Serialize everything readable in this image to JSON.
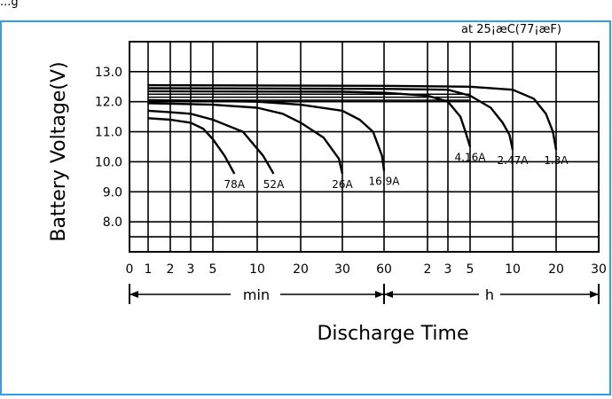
{
  "header": {
    "visible_fragment": "...g"
  },
  "note": "at 25¡æC(77¡æF)",
  "chart_data": {
    "type": "line",
    "title": "",
    "ylabel": "Battery Voltage(V)",
    "xlabel": "Discharge Time",
    "ylim": [
      7.0,
      14.0
    ],
    "y_ticks": [
      "13.0",
      "12.0",
      "11.0",
      "10.0",
      "9.0",
      "8.0"
    ],
    "y_tick_values": [
      13.0,
      12.0,
      11.0,
      10.0,
      9.0,
      8.0
    ],
    "x_scale": "log",
    "x_segments": [
      {
        "name": "min",
        "ticks": [
          "0",
          "1",
          "2",
          "3",
          "5",
          "10",
          "20",
          "30",
          "60"
        ]
      },
      {
        "name": "h",
        "ticks": [
          "2",
          "3",
          "5",
          "10",
          "20",
          "30"
        ]
      }
    ],
    "grid": true,
    "series": [
      {
        "name": "78A",
        "x_minutes": [
          1,
          2,
          3,
          4,
          5,
          6,
          7
        ],
        "y": [
          11.45,
          11.4,
          11.3,
          11.1,
          10.75,
          10.2,
          9.6
        ]
      },
      {
        "name": "52A",
        "x_minutes": [
          1,
          2,
          3,
          5,
          8,
          11,
          13
        ],
        "y": [
          11.7,
          11.65,
          11.6,
          11.4,
          11.0,
          10.2,
          9.6
        ]
      },
      {
        "name": "26A",
        "x_minutes": [
          1,
          3,
          5,
          10,
          15,
          20,
          25,
          29,
          30
        ],
        "y": [
          11.95,
          11.92,
          11.9,
          11.8,
          11.6,
          11.3,
          10.8,
          10.1,
          9.6
        ]
      },
      {
        "name": "16.9A",
        "x_minutes": [
          1,
          5,
          10,
          20,
          30,
          40,
          50,
          58,
          60
        ],
        "y": [
          12.05,
          12.02,
          12.0,
          11.9,
          11.7,
          11.4,
          11.0,
          10.2,
          9.7
        ]
      },
      {
        "name": "4.16A",
        "x_minutes": [
          1,
          30,
          60,
          120,
          180,
          240,
          270,
          300
        ],
        "y": [
          12.35,
          12.33,
          12.3,
          12.2,
          12.0,
          11.5,
          11.0,
          10.5
        ]
      },
      {
        "name": "2.47A",
        "x_minutes": [
          1,
          60,
          180,
          300,
          420,
          510,
          570,
          600
        ],
        "y": [
          12.45,
          12.43,
          12.4,
          12.2,
          11.8,
          11.3,
          10.9,
          10.4
        ]
      },
      {
        "name": "1.3A",
        "x_minutes": [
          1,
          60,
          300,
          600,
          840,
          1020,
          1140,
          1200
        ],
        "y": [
          12.55,
          12.53,
          12.5,
          12.4,
          12.1,
          11.6,
          11.0,
          10.4
        ]
      }
    ],
    "reference_lines_y": [
      12.25,
      12.15,
      12.05
    ]
  }
}
